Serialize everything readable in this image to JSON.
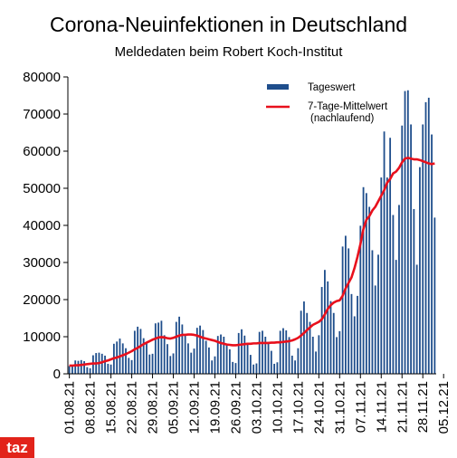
{
  "chart_data": {
    "type": "bar",
    "title": "Corona-Neuinfektionen in Deutschland",
    "subtitle": "Meldedaten beim Robert Koch-Institut",
    "ylim": [
      0,
      80000
    ],
    "y_ticks": [
      "0",
      "10000",
      "20000",
      "30000",
      "40000",
      "50000",
      "60000",
      "70000",
      "80000"
    ],
    "x_tick_labels": [
      "01.08.21",
      "08.08.21",
      "15.08.21",
      "22.08.21",
      "29.08.21",
      "05.09.21",
      "12.09.21",
      "19.09.21",
      "26.09.21",
      "03.10.21",
      "10.10.21",
      "17.10.21",
      "24.10.21",
      "31.10.21",
      "07.11.21",
      "14.11.21",
      "21.11.21",
      "28.11.21",
      "05.12.21"
    ],
    "grid": false,
    "legend_position": "top-right",
    "series": [
      {
        "name": "Tageswert",
        "type": "bar",
        "color": "#1f4e8c",
        "values": [
          2100,
          2000,
          3600,
          3500,
          3700,
          3400,
          1800,
          1500,
          5000,
          5600,
          5700,
          5400,
          4900,
          2700,
          2500,
          8100,
          8700,
          9500,
          8200,
          6900,
          4300,
          3700,
          11600,
          12700,
          12100,
          9600,
          8500,
          5200,
          5400,
          13600,
          13800,
          14300,
          10400,
          8000,
          4800,
          5500,
          14000,
          15400,
          13300,
          10400,
          8200,
          5700,
          6800,
          12400,
          13000,
          11800,
          8900,
          7100,
          3600,
          4700,
          10200,
          10600,
          10000,
          7800,
          6600,
          3200,
          2900,
          11000,
          12000,
          10300,
          8100,
          5100,
          2500,
          2800,
          11300,
          11600,
          10000,
          8600,
          6200,
          2700,
          3100,
          11600,
          12300,
          11700,
          9900,
          4900,
          3600,
          6900,
          17000,
          19500,
          16400,
          14000,
          10000,
          6000,
          10400,
          23400,
          28000,
          24900,
          19600,
          16400,
          9900,
          11500,
          34300,
          37200,
          33800,
          21500,
          15500,
          21000,
          39900,
          50300,
          48700,
          45000,
          33300,
          23800,
          32100,
          52900,
          65300,
          52900,
          63600,
          42800,
          30700,
          45500,
          66900,
          76200,
          76400,
          67200,
          44400,
          29400,
          55700,
          67200,
          73200,
          74400,
          64500,
          42100
        ],
        "start_date": null
      },
      {
        "name": "7-Tage-Mittelwert\n(nachlaufend)",
        "type": "line",
        "color": "#e8101c",
        "values": [
          2200,
          2200,
          2300,
          2300,
          2400,
          2500,
          2600,
          2700,
          2800,
          2800,
          2900,
          3100,
          3400,
          3600,
          3900,
          4200,
          4400,
          4700,
          5000,
          5300,
          5700,
          6100,
          6600,
          7000,
          7500,
          8000,
          8400,
          8800,
          9200,
          9500,
          9800,
          9900,
          9800,
          9600,
          9500,
          9700,
          10000,
          10300,
          10500,
          10500,
          10600,
          10600,
          10500,
          10300,
          10000,
          9700,
          9500,
          9300,
          9100,
          8900,
          8600,
          8300,
          8100,
          7900,
          7800,
          7700,
          7700,
          7800,
          7900,
          8000,
          8100,
          8100,
          8200,
          8200,
          8300,
          8300,
          8300,
          8300,
          8400,
          8400,
          8500,
          8500,
          8600,
          8700,
          8800,
          9000,
          9300,
          9700,
          10300,
          11000,
          11800,
          12500,
          13200,
          13600,
          14000,
          14700,
          16000,
          17500,
          18500,
          19200,
          19600,
          19800,
          21000,
          23000,
          24500,
          26000,
          28500,
          31500,
          35000,
          39000,
          41500,
          42500,
          44000,
          45000,
          46500,
          48000,
          49500,
          51500,
          52500,
          54000,
          54500,
          55500,
          57000,
          58000,
          58200,
          58000,
          57800,
          57800,
          57600,
          57300,
          57000,
          56700,
          56500,
          56700
        ]
      }
    ]
  },
  "logo_text": "taz"
}
